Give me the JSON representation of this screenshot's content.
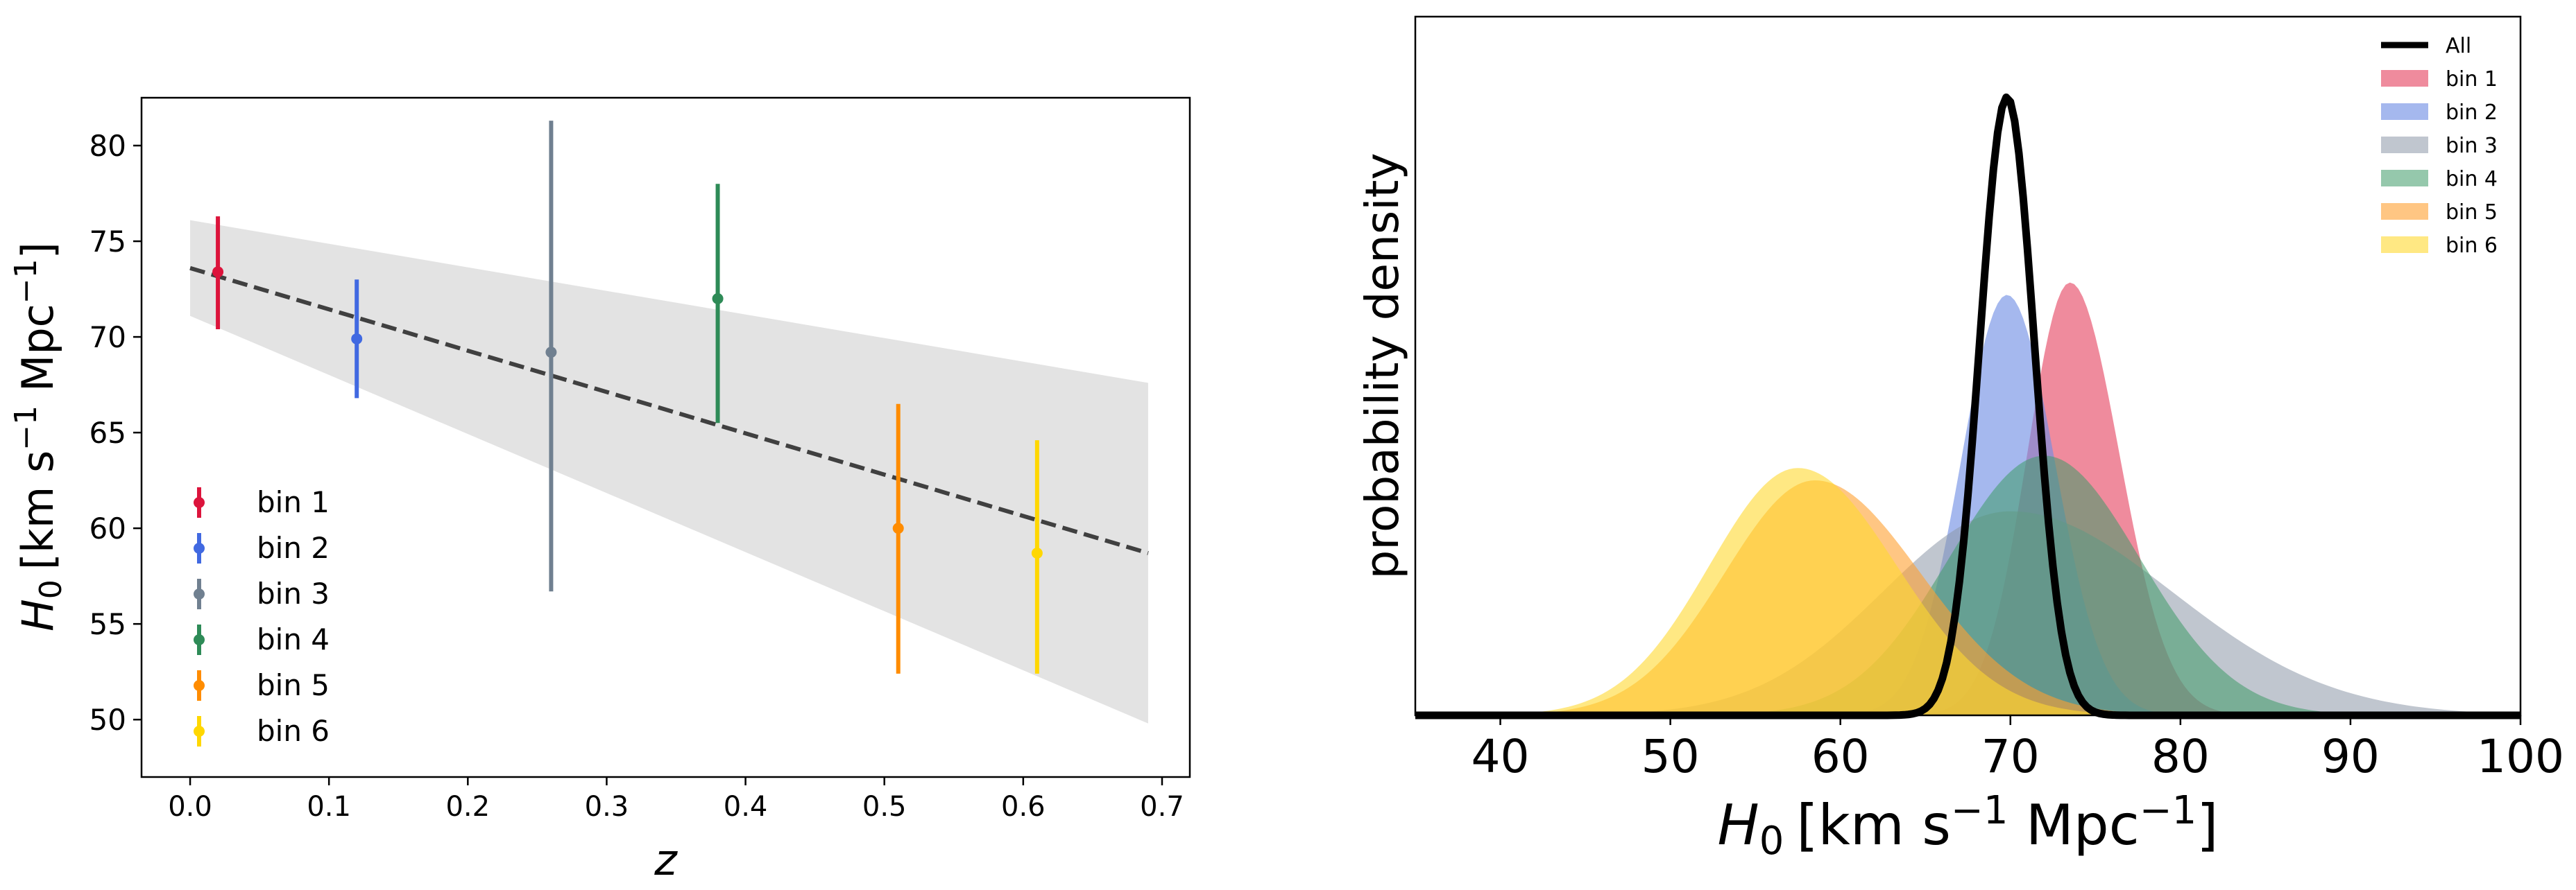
{
  "chart_data": [
    {
      "type": "scatter",
      "name": "h0-vs-redshift",
      "xlabel": "z",
      "ylabel_main": "H",
      "ylabel_sub": "0",
      "ylabel_unit_1": "[km s",
      "ylabel_exp_1": "−1",
      "ylabel_unit_2": " Mpc",
      "ylabel_exp_2": "−1",
      "ylabel_unit_3": "]",
      "xlim": [
        -0.035,
        0.72
      ],
      "ylim": [
        47.0,
        82.5
      ],
      "xticks": [
        0.0,
        0.1,
        0.2,
        0.3,
        0.4,
        0.5,
        0.6,
        0.7
      ],
      "xtick_labels": [
        "0.0",
        "0.1",
        "0.2",
        "0.3",
        "0.4",
        "0.5",
        "0.6",
        "0.7"
      ],
      "yticks": [
        50,
        55,
        60,
        65,
        70,
        75,
        80
      ],
      "ytick_labels": [
        "50",
        "55",
        "60",
        "65",
        "70",
        "75",
        "80"
      ],
      "series": [
        {
          "name": "bin 1",
          "color": "#DC143C",
          "z": 0.02,
          "H0": 73.4,
          "lo": 70.4,
          "hi": 76.3
        },
        {
          "name": "bin 2",
          "color": "#4169E1",
          "z": 0.12,
          "H0": 69.9,
          "lo": 66.8,
          "hi": 73.0
        },
        {
          "name": "bin 3",
          "color": "#708090",
          "z": 0.26,
          "H0": 69.2,
          "lo": 56.7,
          "hi": 81.3
        },
        {
          "name": "bin 4",
          "color": "#2E8B57",
          "z": 0.38,
          "H0": 72.0,
          "lo": 65.5,
          "hi": 78.0
        },
        {
          "name": "bin 5",
          "color": "#FF8C00",
          "z": 0.51,
          "H0": 60.0,
          "lo": 52.4,
          "hi": 66.5
        },
        {
          "name": "bin 6",
          "color": "#FFD700",
          "z": 0.61,
          "H0": 58.7,
          "lo": 52.4,
          "hi": 64.6
        }
      ],
      "fit_line": {
        "x": [
          0.0,
          0.69
        ],
        "y": [
          73.6,
          58.7
        ],
        "color": "#404040"
      },
      "band": {
        "x": [
          0.0,
          0.69
        ],
        "upper": [
          76.1,
          67.6
        ],
        "lower": [
          71.1,
          49.8
        ],
        "color": "#e3e3e3"
      },
      "legend_position": "lower-left"
    },
    {
      "type": "area",
      "name": "h0-posteriors",
      "xlabel_main": "H",
      "xlabel_sub": "0",
      "xlabel_unit_1": "[km s",
      "xlabel_exp_1": "−1",
      "xlabel_unit_2": " Mpc",
      "xlabel_exp_2": "−1",
      "xlabel_unit_3": "]",
      "ylabel": "probability density",
      "xlim": [
        35,
        100
      ],
      "ylim": [
        0,
        1.13
      ],
      "xticks": [
        40,
        50,
        60,
        70,
        80,
        90,
        100
      ],
      "xtick_labels": [
        "40",
        "50",
        "60",
        "70",
        "80",
        "90",
        "100"
      ],
      "x": [
        35,
        36,
        37,
        38,
        39,
        40,
        41,
        42,
        43,
        44,
        45,
        46,
        47,
        48,
        49,
        50,
        51,
        52,
        53,
        54,
        55,
        56,
        57,
        58,
        59,
        60,
        61,
        62,
        63,
        64,
        65,
        66,
        67,
        68,
        69,
        70,
        71,
        72,
        73,
        74,
        75,
        76,
        77,
        78,
        79,
        80,
        81,
        82,
        83,
        84,
        85,
        86,
        87,
        88,
        89,
        90,
        91,
        92,
        93,
        94,
        95,
        96,
        97,
        98,
        99,
        100
      ],
      "series": [
        {
          "name": "bin 1",
          "color": "#E8546E",
          "opacity": 0.68,
          "peak": 0.7,
          "center": 73.5,
          "sigma_left": 2.5,
          "sigma_right": 2.9
        },
        {
          "name": "bin 2",
          "color": "#6D8CE3",
          "opacity": 0.62,
          "peak": 0.68,
          "center": 69.8,
          "sigma_left": 2.7,
          "sigma_right": 2.8
        },
        {
          "name": "bin 3",
          "color": "#8D98A8",
          "opacity": 0.55,
          "peak": 0.33,
          "center": 70.0,
          "sigma_left": 7.5,
          "sigma_right": 9.5
        },
        {
          "name": "bin 4",
          "color": "#3E9A67",
          "opacity": 0.55,
          "peak": 0.42,
          "center": 72.0,
          "sigma_left": 5.6,
          "sigma_right": 5.6
        },
        {
          "name": "bin 5",
          "color": "#FFA030",
          "opacity": 0.6,
          "peak": 0.38,
          "center": 58.5,
          "sigma_left": 5.3,
          "sigma_right": 6.2
        },
        {
          "name": "bin 6",
          "color": "#FFD830",
          "opacity": 0.6,
          "peak": 0.4,
          "center": 57.5,
          "sigma_left": 5.2,
          "sigma_right": 5.8
        }
      ],
      "all_curve": {
        "name": "All",
        "color": "#000000",
        "peak": 1.0,
        "center": 69.8,
        "sigma_left": 1.6,
        "sigma_right": 1.6
      },
      "legend_position": "top-right"
    }
  ]
}
